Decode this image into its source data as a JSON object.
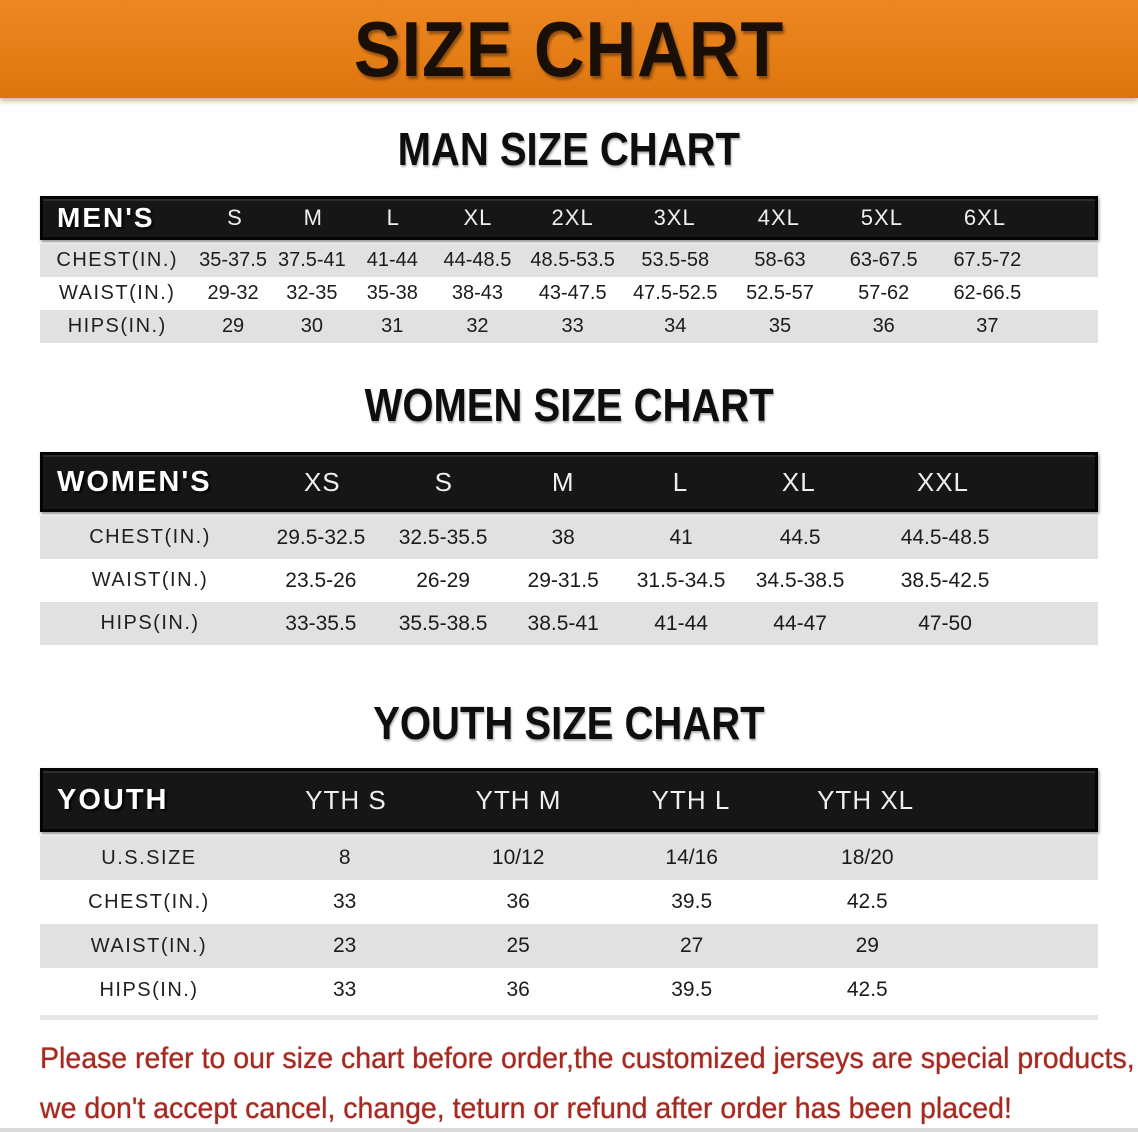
{
  "banner": {
    "title": "SIZE CHART",
    "bg_color": "#E67E17",
    "text_color": "#190F07"
  },
  "colors": {
    "header_bar": "#161616",
    "stripe_gray": "#E1E1E1",
    "footer_red": "#A9281E"
  },
  "men": {
    "heading": "MAN SIZE CHART",
    "label": "MEN'S",
    "columns": [
      "S",
      "M",
      "L",
      "XL",
      "2XL",
      "3XL",
      "4XL",
      "5XL",
      "6XL"
    ],
    "rows": [
      {
        "label": "CHEST(IN.)",
        "values": [
          "35-37.5",
          "37.5-41",
          "41-44",
          "44-48.5",
          "48.5-53.5",
          "53.5-58",
          "58-63",
          "63-67.5",
          "67.5-72"
        ]
      },
      {
        "label": "WAIST(IN.)",
        "values": [
          "29-32",
          "32-35",
          "35-38",
          "38-43",
          "43-47.5",
          "47.5-52.5",
          "52.5-57",
          "57-62",
          "62-66.5"
        ]
      },
      {
        "label": "HIPS(IN.)",
        "values": [
          "29",
          "30",
          "31",
          "32",
          "33",
          "34",
          "35",
          "36",
          "37"
        ]
      }
    ]
  },
  "women": {
    "heading": "WOMEN SIZE CHART",
    "label": "WOMEN'S",
    "columns": [
      "XS",
      "S",
      "M",
      "L",
      "XL",
      "XXL"
    ],
    "rows": [
      {
        "label": "CHEST(IN.)",
        "values": [
          "29.5-32.5",
          "32.5-35.5",
          "38",
          "41",
          "44.5",
          "44.5-48.5"
        ]
      },
      {
        "label": "WAIST(IN.)",
        "values": [
          "23.5-26",
          "26-29",
          "29-31.5",
          "31.5-34.5",
          "34.5-38.5",
          "38.5-42.5"
        ]
      },
      {
        "label": "HIPS(IN.)",
        "values": [
          "33-35.5",
          "35.5-38.5",
          "38.5-41",
          "41-44",
          "44-47",
          "47-50"
        ]
      }
    ]
  },
  "youth": {
    "heading": "YOUTH SIZE CHART",
    "label": "YOUTH",
    "columns": [
      "YTH S",
      "YTH M",
      "YTH L",
      "YTH XL"
    ],
    "rows": [
      {
        "label": "U.S.SIZE",
        "values": [
          "8",
          "10/12",
          "14/16",
          "18/20"
        ]
      },
      {
        "label": "CHEST(IN.)",
        "values": [
          "33",
          "36",
          "39.5",
          "42.5"
        ]
      },
      {
        "label": "WAIST(IN.)",
        "values": [
          "23",
          "25",
          "27",
          "29"
        ]
      },
      {
        "label": "HIPS(IN.)",
        "values": [
          "33",
          "36",
          "39.5",
          "42.5"
        ]
      }
    ]
  },
  "footer": {
    "line1": "Please refer to our size chart before order,the customized jerseys are special products,",
    "line2": "we don't accept cancel, change, teturn or refund after order has been placed!"
  }
}
